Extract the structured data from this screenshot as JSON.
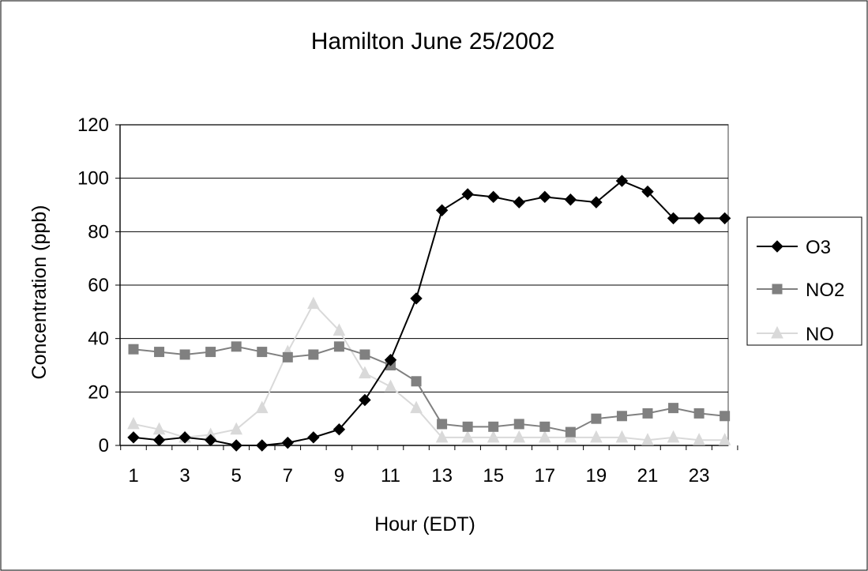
{
  "chart_data": {
    "type": "line",
    "title": "Hamilton June 25/2002",
    "xlabel": "Hour (EDT)",
    "ylabel": "Concentration (ppb)",
    "x": [
      1,
      2,
      3,
      4,
      5,
      6,
      7,
      8,
      9,
      10,
      11,
      12,
      13,
      14,
      15,
      16,
      17,
      18,
      19,
      20,
      21,
      22,
      23,
      24
    ],
    "x_tick_labels": [
      "1",
      "3",
      "5",
      "7",
      "9",
      "11",
      "13",
      "15",
      "17",
      "19",
      "21",
      "23"
    ],
    "y_tick_labels": [
      "0",
      "20",
      "40",
      "60",
      "80",
      "100",
      "120"
    ],
    "ylim": [
      0,
      120
    ],
    "grid": "horizontal",
    "legend_position": "right",
    "series": [
      {
        "name": "O3",
        "color": "#000000",
        "marker": "diamond",
        "values": [
          3,
          2,
          3,
          2,
          0,
          0,
          1,
          3,
          6,
          17,
          32,
          55,
          88,
          94,
          93,
          91,
          93,
          92,
          91,
          99,
          95,
          85,
          85,
          85
        ]
      },
      {
        "name": "NO2",
        "color": "#808080",
        "marker": "square",
        "values": [
          36,
          35,
          34,
          35,
          37,
          35,
          33,
          34,
          37,
          34,
          30,
          24,
          8,
          7,
          7,
          8,
          7,
          5,
          10,
          11,
          12,
          14,
          12,
          11
        ]
      },
      {
        "name": "NO",
        "color": "#d9d9d9",
        "marker": "triangle",
        "values": [
          8,
          6,
          3,
          4,
          6,
          14,
          35,
          53,
          43,
          27,
          22,
          14,
          3,
          3,
          3,
          3,
          3,
          3,
          3,
          3,
          2,
          3,
          2,
          2
        ]
      }
    ]
  }
}
